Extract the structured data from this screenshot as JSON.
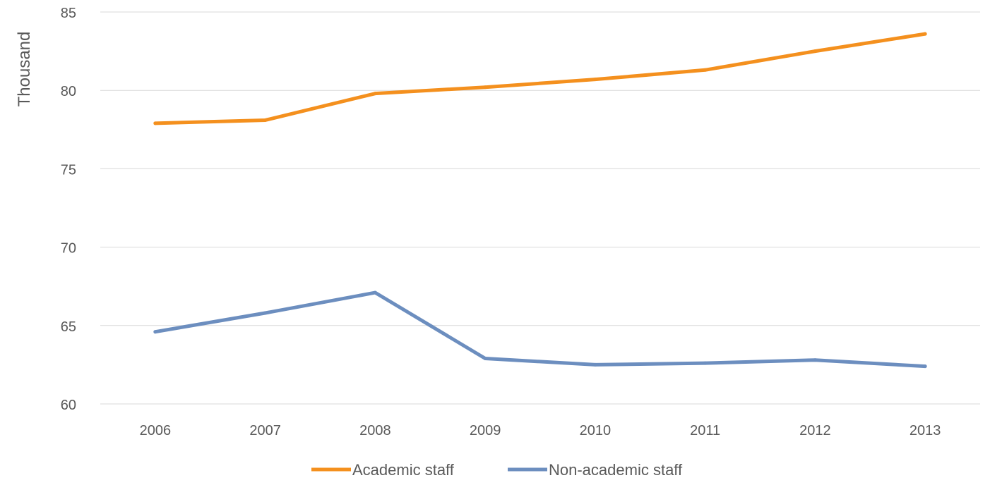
{
  "chart_data": {
    "type": "line",
    "title": "",
    "xlabel": "",
    "ylabel": "Thousand",
    "categories": [
      "2006",
      "2007",
      "2008",
      "2009",
      "2010",
      "2011",
      "2012",
      "2013"
    ],
    "ylim": [
      60,
      85
    ],
    "yticks": [
      "60",
      "65",
      "70",
      "75",
      "80",
      "85"
    ],
    "grid": true,
    "legend_position": "bottom",
    "series": [
      {
        "name": "Academic staff",
        "color": "#F4901E",
        "values": [
          77.9,
          78.1,
          79.8,
          80.2,
          80.7,
          81.3,
          82.5,
          83.6
        ]
      },
      {
        "name": "Non-academic staff",
        "color": "#6C8EBF",
        "values": [
          64.6,
          65.8,
          67.1,
          62.9,
          62.5,
          62.6,
          62.8,
          62.4
        ]
      }
    ]
  }
}
